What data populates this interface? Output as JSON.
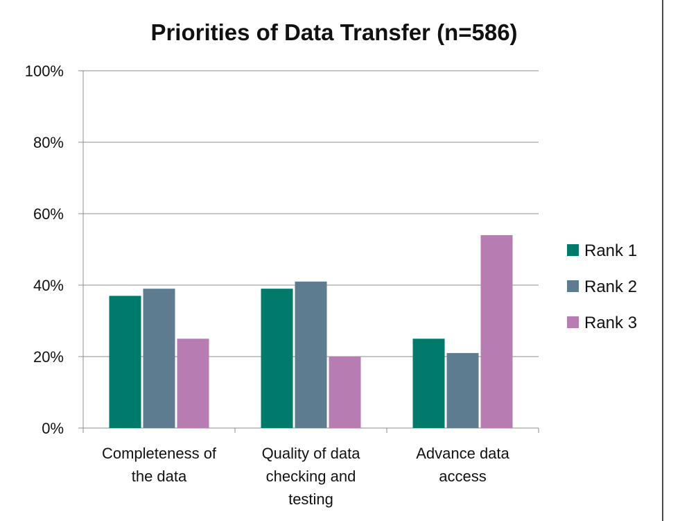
{
  "chart_data": {
    "type": "bar",
    "title": "Priorities of Data Transfer (n=586)",
    "xlabel": "",
    "ylabel": "",
    "ylim": [
      0,
      100
    ],
    "yticks": [
      0,
      20,
      40,
      60,
      80,
      100
    ],
    "ytick_labels": [
      "0%",
      "20%",
      "40%",
      "60%",
      "80%",
      "100%"
    ],
    "categories": [
      [
        "Completeness of",
        "the data"
      ],
      [
        "Quality of data",
        "checking and",
        "testing"
      ],
      [
        "Advance data",
        "access"
      ]
    ],
    "series": [
      {
        "name": "Rank 1",
        "color": "#007A6A",
        "values": [
          37,
          39,
          25
        ]
      },
      {
        "name": "Rank 2",
        "color": "#5E7C90",
        "values": [
          39,
          41,
          21
        ]
      },
      {
        "name": "Rank 3",
        "color": "#B77DB3",
        "values": [
          25,
          20,
          54
        ]
      }
    ],
    "grid": true,
    "legend_position": "right"
  }
}
